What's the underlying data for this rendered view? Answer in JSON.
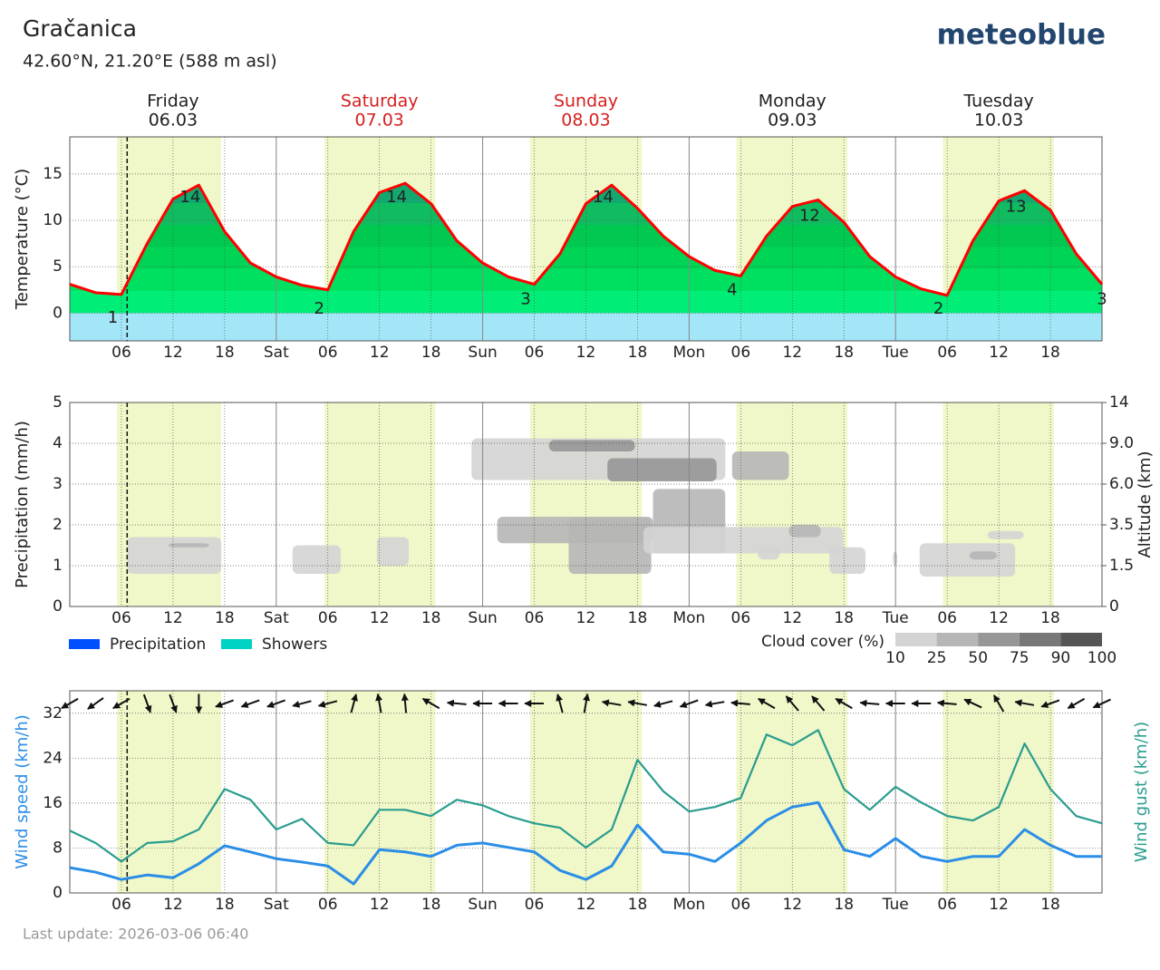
{
  "header": {
    "title": "Gračanica",
    "subtitle": "42.60°N, 21.20°E (588 m asl)",
    "logo": "meteoblue",
    "footer": "Last update: 2026-03-06 06:40"
  },
  "x_axis": {
    "xlim": [
      0,
      120
    ],
    "xticks": [
      {
        "value": 6,
        "label": "06"
      },
      {
        "value": 12,
        "label": "12"
      },
      {
        "value": 18,
        "label": "18"
      },
      {
        "value": 24,
        "label": "Sat"
      },
      {
        "value": 30,
        "label": "06"
      },
      {
        "value": 36,
        "label": "12"
      },
      {
        "value": 42,
        "label": "18"
      },
      {
        "value": 48,
        "label": "Sun"
      },
      {
        "value": 54,
        "label": "06"
      },
      {
        "value": 60,
        "label": "12"
      },
      {
        "value": 66,
        "label": "18"
      },
      {
        "value": 72,
        "label": "Mon"
      },
      {
        "value": 78,
        "label": "06"
      },
      {
        "value": 84,
        "label": "12"
      },
      {
        "value": 90,
        "label": "18"
      },
      {
        "value": 96,
        "label": "Tue"
      },
      {
        "value": 102,
        "label": "06"
      },
      {
        "value": 108,
        "label": "12"
      },
      {
        "value": 114,
        "label": "18"
      }
    ],
    "days": [
      {
        "name": "Friday",
        "date": "06.03",
        "color": "#222222"
      },
      {
        "name": "Saturday",
        "date": "07.03",
        "color": "#d62020"
      },
      {
        "name": "Sunday",
        "date": "08.03",
        "color": "#d62020"
      },
      {
        "name": "Monday",
        "date": "09.03",
        "color": "#222222"
      },
      {
        "name": "Tuesday",
        "date": "10.03",
        "color": "#222222"
      }
    ],
    "daylight": [
      [
        5.5,
        17.6
      ],
      [
        29.6,
        42.5
      ],
      [
        53.5,
        66.5
      ],
      [
        77.5,
        90.4
      ],
      [
        101.5,
        114.4
      ]
    ],
    "now": 6.67
  },
  "chart_data": [
    {
      "type": "line",
      "ylabel": "Temperature (°C)",
      "x": [
        0,
        3,
        6,
        9,
        12,
        15,
        18,
        21,
        24,
        27,
        30,
        33,
        36,
        39,
        42,
        45,
        48,
        51,
        54,
        57,
        60,
        63,
        66,
        69,
        72,
        75,
        78,
        81,
        84,
        87,
        90,
        93,
        96,
        99,
        102,
        105,
        108,
        111,
        114,
        117,
        120
      ],
      "values": [
        3.1,
        2.2,
        2.0,
        7.5,
        12.3,
        13.8,
        8.8,
        5.4,
        3.9,
        3.0,
        2.5,
        8.8,
        13.0,
        14.0,
        11.8,
        7.8,
        5.4,
        3.9,
        3.1,
        6.4,
        11.8,
        13.8,
        11.3,
        8.3,
        6.1,
        4.6,
        4.0,
        8.3,
        11.5,
        12.2,
        9.8,
        6.1,
        3.9,
        2.6,
        1.9,
        7.8,
        12.1,
        13.2,
        11.1,
        6.4,
        3.1
      ],
      "color": "#ff0000",
      "ylim": [
        -3,
        19
      ],
      "yticks": [
        0,
        5,
        10,
        15
      ],
      "grid": true,
      "annotations": [
        {
          "x": 5,
          "value": 1
        },
        {
          "x": 14,
          "value": 14
        },
        {
          "x": 29,
          "value": 2
        },
        {
          "x": 38,
          "value": 14
        },
        {
          "x": 53,
          "value": 3
        },
        {
          "x": 62,
          "value": 14
        },
        {
          "x": 77,
          "value": 4
        },
        {
          "x": 86,
          "value": 12
        },
        {
          "x": 101,
          "value": 2
        },
        {
          "x": 110,
          "value": 13
        },
        {
          "x": 120,
          "value": 3
        }
      ]
    },
    {
      "type": "bar",
      "ylabel": "Precipitation (mm/h)",
      "y2label": "Altitude (km)",
      "x": [
        0,
        3,
        6,
        9,
        12,
        15,
        18,
        21,
        24,
        27,
        30,
        33,
        36,
        39,
        42,
        45,
        48,
        51,
        54,
        57,
        60,
        63,
        66,
        69,
        72,
        75,
        78,
        81,
        84,
        87,
        90,
        93,
        96,
        99,
        102,
        105,
        108,
        111,
        114,
        117,
        120
      ],
      "series": [
        {
          "name": "Precipitation",
          "color": "#0050ff",
          "values": [
            0,
            0,
            0,
            0,
            0,
            0,
            0,
            0,
            0,
            0,
            0,
            0,
            0,
            0,
            0,
            0,
            0,
            0,
            0,
            0,
            0,
            0,
            0,
            0,
            0,
            0,
            0,
            0,
            0,
            0,
            0,
            0,
            0,
            0,
            0,
            0,
            0,
            0,
            0,
            0,
            0
          ]
        },
        {
          "name": "Showers",
          "color": "#00d2c4",
          "values": [
            0,
            0,
            0,
            0,
            0,
            0,
            0,
            0,
            0,
            0,
            0,
            0,
            0,
            0,
            0,
            0,
            0,
            0,
            0,
            0,
            0,
            0,
            0,
            0,
            0,
            0,
            0,
            0,
            0,
            0,
            0,
            0,
            0,
            0,
            0,
            0,
            0,
            0,
            0,
            0,
            0
          ]
        }
      ],
      "ylim": [
        0,
        5
      ],
      "yticks": [
        0,
        1,
        2,
        3,
        4,
        5
      ],
      "y2lim": [
        0,
        14
      ],
      "y2ticks": [
        0,
        1.5,
        3.5,
        {
          "value": 6,
          "label": "6.0"
        },
        {
          "value": 9,
          "label": "9.0"
        },
        14
      ],
      "grid": true,
      "clouds": [
        {
          "x": [
            6.7,
            17.6
          ],
          "altitude": [
            1.2,
            2.9
          ],
          "cover": 20
        },
        {
          "x": [
            11.5,
            16.2
          ],
          "altitude": [
            2.4,
            2.6
          ],
          "cover": 40
        },
        {
          "x": [
            25.9,
            31.5
          ],
          "altitude": [
            1.2,
            2.5
          ],
          "cover": 20
        },
        {
          "x": [
            35.7,
            39.4
          ],
          "altitude": [
            1.5,
            2.9
          ],
          "cover": 20
        },
        {
          "x": [
            46.7,
            76.2
          ],
          "altitude": [
            6.3,
            9.6
          ],
          "cover": 20
        },
        {
          "x": [
            55.7,
            65.7
          ],
          "altitude": [
            8.4,
            9.4
          ],
          "cover": 60
        },
        {
          "x": [
            62.5,
            75.2
          ],
          "altitude": [
            6.2,
            7.9
          ],
          "cover": 60
        },
        {
          "x": [
            77.0,
            83.6
          ],
          "altitude": [
            6.3,
            8.4
          ],
          "cover": 40
        },
        {
          "x": [
            49.7,
            67.8
          ],
          "altitude": [
            2.6,
            4.0
          ],
          "cover": 40
        },
        {
          "x": [
            58.0,
            67.6
          ],
          "altitude": [
            1.2,
            3.9
          ],
          "cover": 40
        },
        {
          "x": [
            67.8,
            76.2
          ],
          "altitude": [
            2.1,
            5.7
          ],
          "cover": 40
        },
        {
          "x": [
            66.7,
            89.9
          ],
          "altitude": [
            2.1,
            3.4
          ],
          "cover": 20
        },
        {
          "x": [
            80.0,
            82.5
          ],
          "altitude": [
            1.8,
            2.4
          ],
          "cover": 20
        },
        {
          "x": [
            83.6,
            87.3
          ],
          "altitude": [
            2.9,
            3.5
          ],
          "cover": 40
        },
        {
          "x": [
            88.3,
            92.5
          ],
          "altitude": [
            1.2,
            2.4
          ],
          "cover": 20
        },
        {
          "x": [
            95.7,
            96.2
          ],
          "altitude": [
            1.5,
            2.2
          ],
          "cover": 20
        },
        {
          "x": [
            98.8,
            109.9
          ],
          "altitude": [
            1.1,
            2.6
          ],
          "cover": 20
        },
        {
          "x": [
            104.6,
            107.8
          ],
          "altitude": [
            1.8,
            2.2
          ],
          "cover": 40
        },
        {
          "x": [
            106.7,
            110.9
          ],
          "altitude": [
            2.8,
            3.2
          ],
          "cover": 20
        }
      ],
      "cloud_legend": {
        "title": "Cloud cover (%)",
        "ticks": [
          10,
          25,
          50,
          75,
          90,
          100
        ],
        "colors": [
          "#d4d4d4",
          "#b6b6b6",
          "#979797",
          "#777777",
          "#555555"
        ]
      }
    },
    {
      "type": "line",
      "ylabel": "Wind speed (km/h)",
      "y2label": "Wind gust (km/h)",
      "x": [
        0,
        3,
        6,
        9,
        12,
        15,
        18,
        21,
        24,
        27,
        30,
        33,
        36,
        39,
        42,
        45,
        48,
        51,
        54,
        57,
        60,
        63,
        66,
        69,
        72,
        75,
        78,
        81,
        84,
        87,
        90,
        93,
        96,
        99,
        102,
        105,
        108,
        111,
        114,
        117,
        120
      ],
      "series": [
        {
          "color": "#2b8ee6",
          "values": [
            4.5,
            3.7,
            2.4,
            3.2,
            2.7,
            5.2,
            8.4,
            7.3,
            6.1,
            5.5,
            4.8,
            1.6,
            7.7,
            7.3,
            6.5,
            8.5,
            8.9,
            8.1,
            7.3,
            4.0,
            2.4,
            4.8,
            12.1,
            7.3,
            6.9,
            5.6,
            8.9,
            12.9,
            15.3,
            16.1,
            7.7,
            6.5,
            9.7,
            6.5,
            5.6,
            6.5,
            6.5,
            11.3,
            8.5,
            6.5,
            6.5
          ]
        },
        {
          "color": "#2a9d8f",
          "values": [
            11.1,
            8.9,
            5.6,
            8.9,
            9.2,
            11.3,
            18.5,
            16.6,
            11.3,
            13.2,
            8.9,
            8.5,
            14.8,
            14.8,
            13.7,
            16.6,
            15.6,
            13.7,
            12.4,
            11.6,
            8.1,
            11.3,
            23.7,
            18.1,
            14.5,
            15.3,
            16.9,
            28.2,
            26.3,
            29.0,
            18.5,
            14.8,
            18.9,
            16.1,
            13.7,
            12.9,
            15.3,
            26.6,
            18.5,
            13.7,
            12.4
          ]
        }
      ],
      "wind_direction": [
        60,
        55,
        60,
        340,
        340,
        0,
        70,
        70,
        70,
        75,
        75,
        195,
        170,
        175,
        120,
        95,
        90,
        90,
        90,
        165,
        190,
        100,
        100,
        75,
        70,
        80,
        95,
        120,
        140,
        140,
        120,
        95,
        90,
        90,
        95,
        115,
        150,
        100,
        70,
        60,
        65
      ],
      "ylim": [
        0,
        36
      ],
      "yticks": [
        0,
        8,
        16,
        24,
        32
      ],
      "grid": true
    }
  ]
}
